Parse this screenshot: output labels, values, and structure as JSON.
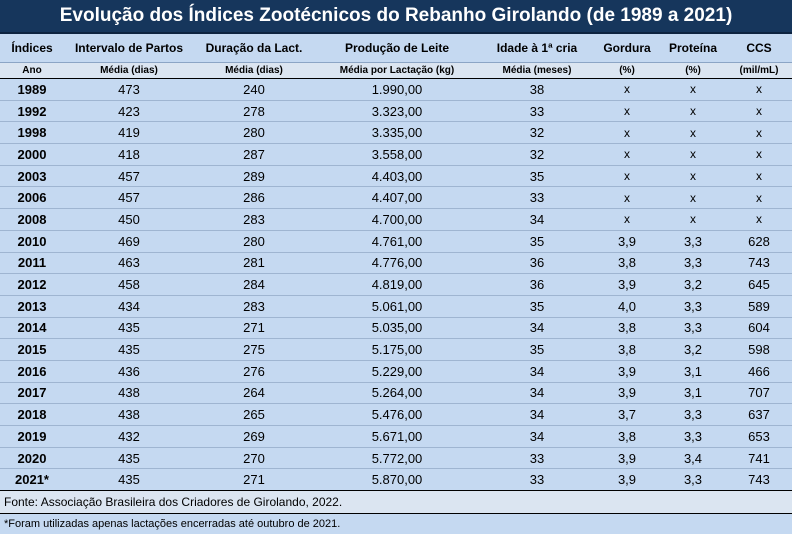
{
  "title": "Evolução dos Índices Zootécnicos do Rebanho Girolando (de 1989 a 2021)",
  "headers": [
    "Índices",
    "Intervalo de Partos",
    "Duração da Lact.",
    "Produção de Leite",
    "Idade à 1ª cria",
    "Gordura",
    "Proteína",
    "CCS"
  ],
  "subheaders": [
    "Ano",
    "Média (dias)",
    "Média (dias)",
    "Média por Lactação (kg)",
    "Média (meses)",
    "(%)",
    "(%)",
    "(mil/mL)"
  ],
  "rows": [
    [
      "1989",
      "473",
      "240",
      "1.990,00",
      "38",
      "x",
      "x",
      "x"
    ],
    [
      "1992",
      "423",
      "278",
      "3.323,00",
      "33",
      "x",
      "x",
      "x"
    ],
    [
      "1998",
      "419",
      "280",
      "3.335,00",
      "32",
      "x",
      "x",
      "x"
    ],
    [
      "2000",
      "418",
      "287",
      "3.558,00",
      "32",
      "x",
      "x",
      "x"
    ],
    [
      "2003",
      "457",
      "289",
      "4.403,00",
      "35",
      "x",
      "x",
      "x"
    ],
    [
      "2006",
      "457",
      "286",
      "4.407,00",
      "33",
      "x",
      "x",
      "x"
    ],
    [
      "2008",
      "450",
      "283",
      "4.700,00",
      "34",
      "x",
      "x",
      "x"
    ],
    [
      "2010",
      "469",
      "280",
      "4.761,00",
      "35",
      "3,9",
      "3,3",
      "628"
    ],
    [
      "2011",
      "463",
      "281",
      "4.776,00",
      "36",
      "3,8",
      "3,3",
      "743"
    ],
    [
      "2012",
      "458",
      "284",
      "4.819,00",
      "36",
      "3,9",
      "3,2",
      "645"
    ],
    [
      "2013",
      "434",
      "283",
      "5.061,00",
      "35",
      "4,0",
      "3,3",
      "589"
    ],
    [
      "2014",
      "435",
      "271",
      "5.035,00",
      "34",
      "3,8",
      "3,3",
      "604"
    ],
    [
      "2015",
      "435",
      "275",
      "5.175,00",
      "35",
      "3,8",
      "3,2",
      "598"
    ],
    [
      "2016",
      "436",
      "276",
      "5.229,00",
      "34",
      "3,9",
      "3,1",
      "466"
    ],
    [
      "2017",
      "438",
      "264",
      "5.264,00",
      "34",
      "3,9",
      "3,1",
      "707"
    ],
    [
      "2018",
      "438",
      "265",
      "5.476,00",
      "34",
      "3,7",
      "3,3",
      "637"
    ],
    [
      "2019",
      "432",
      "269",
      "5.671,00",
      "34",
      "3,8",
      "3,3",
      "653"
    ],
    [
      "2020",
      "435",
      "270",
      "5.772,00",
      "33",
      "3,9",
      "3,4",
      "741"
    ],
    [
      "2021*",
      "435",
      "271",
      "5.870,00",
      "33",
      "3,9",
      "3,3",
      "743"
    ]
  ],
  "source": "Fonte: Associação Brasileira dos Criadores de Girolando, 2022.",
  "note": "*Foram utilizadas apenas lactações encerradas até outubro de 2021."
}
